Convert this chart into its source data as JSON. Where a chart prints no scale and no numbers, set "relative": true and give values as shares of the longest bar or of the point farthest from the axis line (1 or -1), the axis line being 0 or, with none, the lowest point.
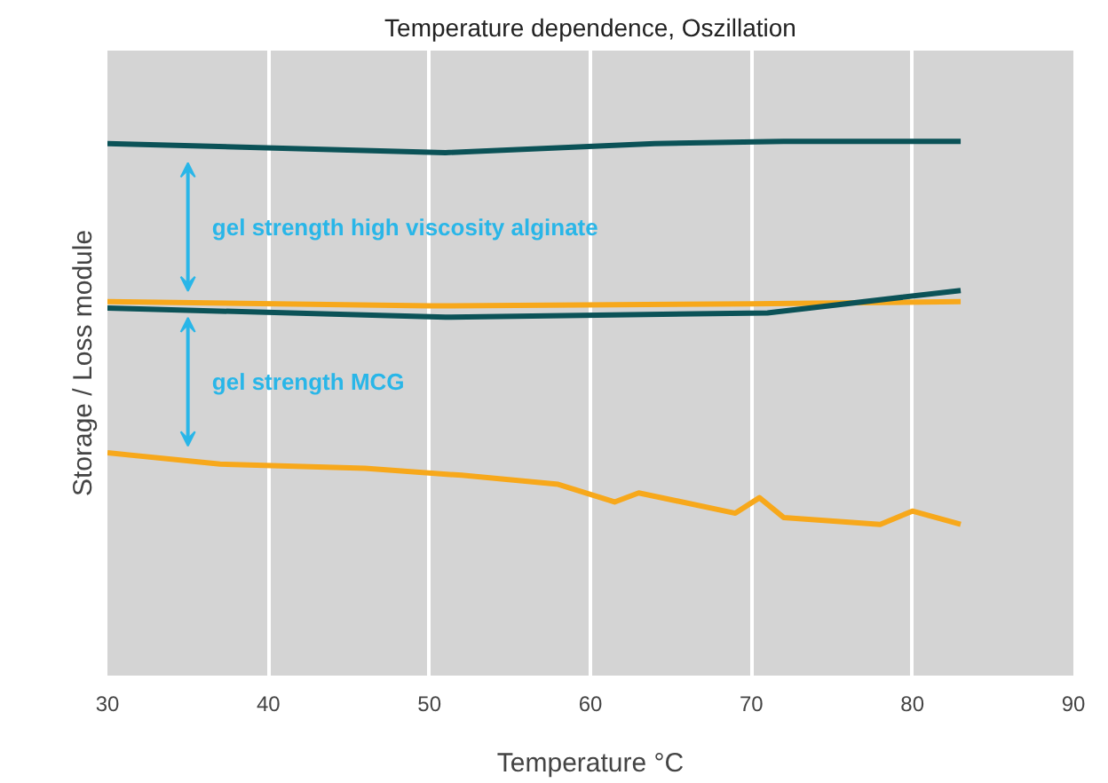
{
  "chart_data": {
    "type": "line",
    "title": "Temperature dependence, Oszillation",
    "xlabel": "Temperature °C",
    "ylabel": "Storage / Loss module",
    "relative": true,
    "grid": "x",
    "xlim": [
      30,
      90
    ],
    "xticks": [
      30,
      40,
      50,
      60,
      70,
      80,
      90
    ],
    "series": [
      {
        "color": "#0b5257",
        "x": [
          30,
          51,
          64,
          72,
          83
        ],
        "values": [
          0.996,
          0.979,
          0.996,
          1,
          1
        ]
      },
      {
        "color": "#f7a81b",
        "x": [
          30,
          50,
          70,
          83
        ],
        "values": [
          0.7,
          0.692,
          0.696,
          0.7
        ]
      },
      {
        "color": "#0b5257",
        "x": [
          30,
          51,
          71,
          83
        ],
        "values": [
          0.688,
          0.671,
          0.679,
          0.721
        ]
      },
      {
        "color": "#f7a81b",
        "x": [
          30,
          37,
          46,
          52,
          58,
          61.5,
          63,
          69,
          70.5,
          72,
          78,
          80,
          83
        ],
        "values": [
          0.417,
          0.396,
          0.388,
          0.375,
          0.358,
          0.325,
          0.342,
          0.304,
          0.333,
          0.296,
          0.283,
          0.308,
          0.283
        ]
      }
    ],
    "annotations": [
      "gel strength high viscosity alginate",
      "gel strength MCG"
    ]
  }
}
